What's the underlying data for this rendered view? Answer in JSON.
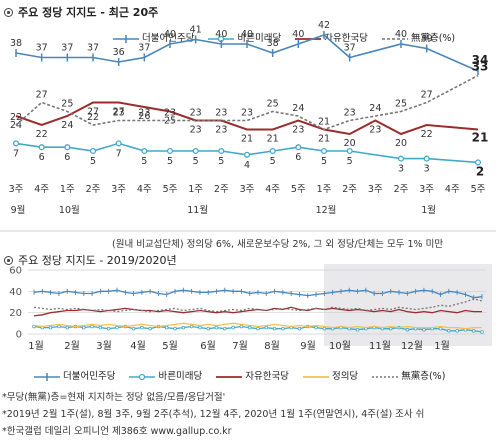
{
  "colors": {
    "dem": "#4a86b8",
    "bare": "#43a9c8",
    "lkp": "#9c2b2b",
    "justice": "#f2c14e",
    "none": "#777777"
  },
  "top": {
    "title": "주요 정당 지지도 - 최근 20주",
    "legend": [
      "더불어민주당",
      "바른미래당",
      "자유한국당",
      "無黨층(%)"
    ],
    "note": "(원내 비교섭단체) 정의당 6%, 새로운보수당 2%, 그 외 정당/단체는 모두 1% 미만"
  },
  "bottom": {
    "title": "주요 정당 지지도 - 2019/2020년",
    "legend": [
      "더불어민주당",
      "바른미래당",
      "자유한국당",
      "정의당",
      "無黨층(%)"
    ],
    "notes": [
      "*무당(無黨)층=현재 지지하는 정당 없음/모름/응답거절'",
      "*2019년 2월 1주(설), 8월 3주, 9월 2주(추석), 12월 4주, 2020년 1월 1주(연말연시), 4주(설) 조사 쉬",
      "*한국갤럽 데일리 오피니언 제386호 www.gallup.co.kr"
    ]
  },
  "chart_data": [
    {
      "type": "line",
      "title": "주요 정당 지지도 - 최근 20주",
      "x": [
        "3주",
        "4주",
        "1주",
        "2주",
        "3주",
        "4주",
        "5주",
        "1주",
        "2주",
        "3주",
        "4주",
        "5주",
        "1주",
        "2주",
        "3주",
        "2주",
        "3주",
        "4주",
        "5주"
      ],
      "x_sublabels": {
        "0": "9월",
        "2": "10월",
        "7": "11월",
        "12": "12월",
        "16": "1월"
      },
      "series": [
        {
          "name": "더불어민주당",
          "values": [
            38,
            37,
            37,
            37,
            36,
            37,
            40,
            41,
            40,
            40,
            38,
            40,
            42,
            37,
            null,
            40,
            39,
            null,
            34
          ],
          "end_label": "34"
        },
        {
          "name": "바른미래당",
          "values": [
            7,
            6,
            6,
            5,
            7,
            5,
            5,
            5,
            5,
            4,
            5,
            6,
            5,
            5,
            null,
            3,
            3,
            null,
            2
          ],
          "end_label": "2"
        },
        {
          "name": "자유한국당",
          "values": [
            24,
            22,
            24,
            27,
            27,
            26,
            25,
            23,
            23,
            21,
            21,
            23,
            21,
            20,
            23,
            20,
            22,
            null,
            21
          ],
          "end_label": "21"
        },
        {
          "name": "無黨층(%)",
          "values": [
            22,
            27,
            25,
            22,
            23,
            23,
            23,
            23,
            23,
            23,
            25,
            24,
            21,
            23,
            24,
            25,
            27,
            null,
            33
          ],
          "end_label": "33"
        }
      ]
    },
    {
      "type": "line",
      "title": "주요 정당 지지도 - 2019/2020년",
      "x_ticks": [
        "1월",
        "2월",
        "3월",
        "4월",
        "5월",
        "6월",
        "7월",
        "8월",
        "9월",
        "10월",
        "11월",
        "12월",
        "1월"
      ],
      "ylim": [
        0,
        60
      ],
      "yticks": [
        0,
        20,
        40,
        60
      ],
      "grid": true,
      "series": [
        {
          "name": "더불어민주당",
          "values": [
            39,
            40,
            39,
            38,
            40,
            39,
            38,
            38,
            40,
            40,
            41,
            39,
            38,
            39,
            40,
            38,
            37,
            40,
            41,
            40,
            39,
            39,
            40,
            41,
            40,
            40,
            38,
            39,
            38,
            40,
            39,
            38,
            37,
            36,
            37,
            38,
            39,
            40,
            41,
            40,
            41,
            38,
            38,
            40,
            39,
            38,
            40,
            41,
            40,
            37,
            40,
            39,
            37,
            34,
            35
          ]
        },
        {
          "name": "바른미래당",
          "values": [
            7,
            6,
            6,
            7,
            6,
            7,
            6,
            7,
            6,
            5,
            6,
            7,
            5,
            6,
            5,
            7,
            6,
            5,
            6,
            7,
            6,
            5,
            6,
            5,
            6,
            7,
            6,
            5,
            6,
            5,
            5,
            6,
            5,
            7,
            6,
            5,
            5,
            6,
            5,
            4,
            5,
            6,
            5,
            5,
            6,
            4,
            5,
            4,
            5,
            5,
            3,
            3,
            4,
            3,
            2
          ]
        },
        {
          "name": "자유한국당",
          "values": [
            17,
            18,
            20,
            21,
            22,
            22,
            23,
            22,
            21,
            22,
            23,
            24,
            23,
            22,
            22,
            21,
            22,
            21,
            20,
            21,
            22,
            21,
            20,
            21,
            20,
            21,
            22,
            23,
            22,
            24,
            23,
            25,
            23,
            22,
            24,
            23,
            24,
            23,
            22,
            23,
            22,
            21,
            22,
            21,
            23,
            21,
            20,
            21,
            20,
            22,
            21,
            20,
            22,
            21,
            21
          ]
        },
        {
          "name": "정의당",
          "values": [
            8,
            7,
            8,
            9,
            8,
            7,
            8,
            9,
            8,
            9,
            8,
            7,
            8,
            9,
            8,
            7,
            8,
            9,
            10,
            9,
            8,
            9,
            8,
            9,
            10,
            9,
            8,
            7,
            8,
            9,
            8,
            7,
            8,
            7,
            8,
            7,
            6,
            7,
            6,
            7,
            6,
            7,
            6,
            7,
            6,
            7,
            6,
            6,
            6,
            7,
            6,
            6,
            5,
            6,
            6
          ]
        },
        {
          "name": "無黨층(%)",
          "values": [
            25,
            24,
            23,
            24,
            23,
            24,
            23,
            22,
            23,
            22,
            21,
            22,
            23,
            22,
            21,
            22,
            23,
            24,
            22,
            23,
            24,
            22,
            21,
            22,
            23,
            22,
            24,
            23,
            22,
            23,
            24,
            23,
            22,
            23,
            24,
            23,
            25,
            24,
            23,
            24,
            22,
            23,
            24,
            23,
            25,
            24,
            23,
            24,
            25,
            27,
            26,
            28,
            30,
            33,
            31
          ]
        }
      ]
    }
  ]
}
